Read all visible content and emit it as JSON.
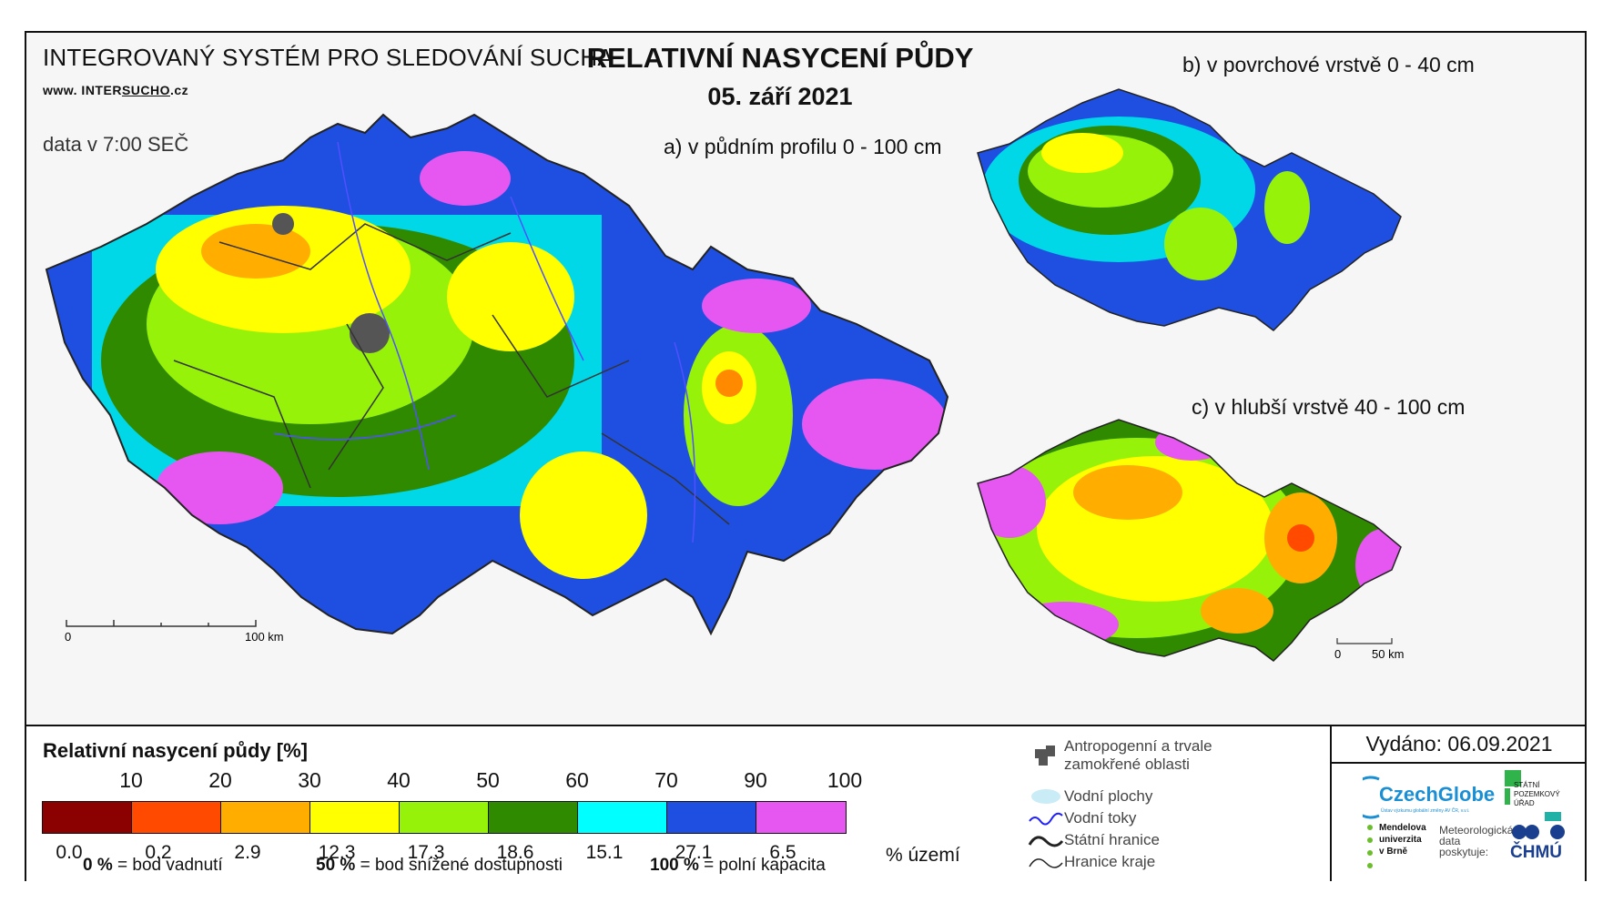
{
  "header": {
    "system_title": "INTEGROVANÝ SYSTÉM PRO SLEDOVÁNÍ SUCHA",
    "url_prefix": "www. INTER",
    "url_highlight": "SUCHO",
    "url_suffix": ".cz",
    "data_time": "data v 7:00 SEČ",
    "main_title": "RELATIVNÍ NASYCENÍ PŮDY",
    "date": "05. září 2021"
  },
  "maps": {
    "a_label": "a) v půdním profilu 0 - 100 cm",
    "b_label": "b) v povrchové vrstvě 0 - 40 cm",
    "c_label": "c) v hlubší vrstvě 40 - 100 cm",
    "scale_main": {
      "start": "0",
      "end": "100 km"
    },
    "scale_small": {
      "start": "0",
      "end": "50 km"
    }
  },
  "legend": {
    "title": "Relativní nasycení půdy [%]",
    "ticks": [
      "10",
      "20",
      "30",
      "40",
      "50",
      "60",
      "70",
      "90",
      "100"
    ],
    "colors": [
      "#8b0000",
      "#ff4a00",
      "#ffae00",
      "#ffff00",
      "#97f20a",
      "#2f8a00",
      "#00ffff",
      "#1f4fe0",
      "#e657f2"
    ],
    "percent_area": [
      "0.0",
      "0.2",
      "2.9",
      "12.3",
      "17.3",
      "18.6",
      "15.1",
      "27.1",
      "6.5"
    ],
    "percent_unit": "% území",
    "foot": [
      {
        "value": "0 %",
        "text": "= bod vadnutí"
      },
      {
        "value": "50 %",
        "text": "= bod snížené dostupnosti"
      },
      {
        "value": "100 %",
        "text": "= polní kapacita"
      }
    ]
  },
  "map_legend": {
    "anthropogenic_1": "Antropogenní a trvale",
    "anthropogenic_2": "zamokřené oblasti",
    "water_areas": "Vodní plochy",
    "rivers": "Vodní toky",
    "state_border": "Státní hranice",
    "region_border": "Hranice kraje"
  },
  "issued": "Vydáno: 06.09.2021",
  "logos": {
    "czechglobe": "CzechGlobe",
    "czechglobe_sub": "Ústav výzkumu globální změny AV ČR, v.v.i.",
    "spu_1": "STÁTNÍ",
    "spu_2": "POZEMKOVÝ",
    "spu_3": "ÚŘAD",
    "mendel_1": "Mendelova",
    "mendel_2": "univerzita",
    "mendel_3": "v Brně",
    "meteo_1": "Meteorologická",
    "meteo_2": "data",
    "meteo_3": "poskytuje:",
    "chmu": "ČHMÚ"
  }
}
